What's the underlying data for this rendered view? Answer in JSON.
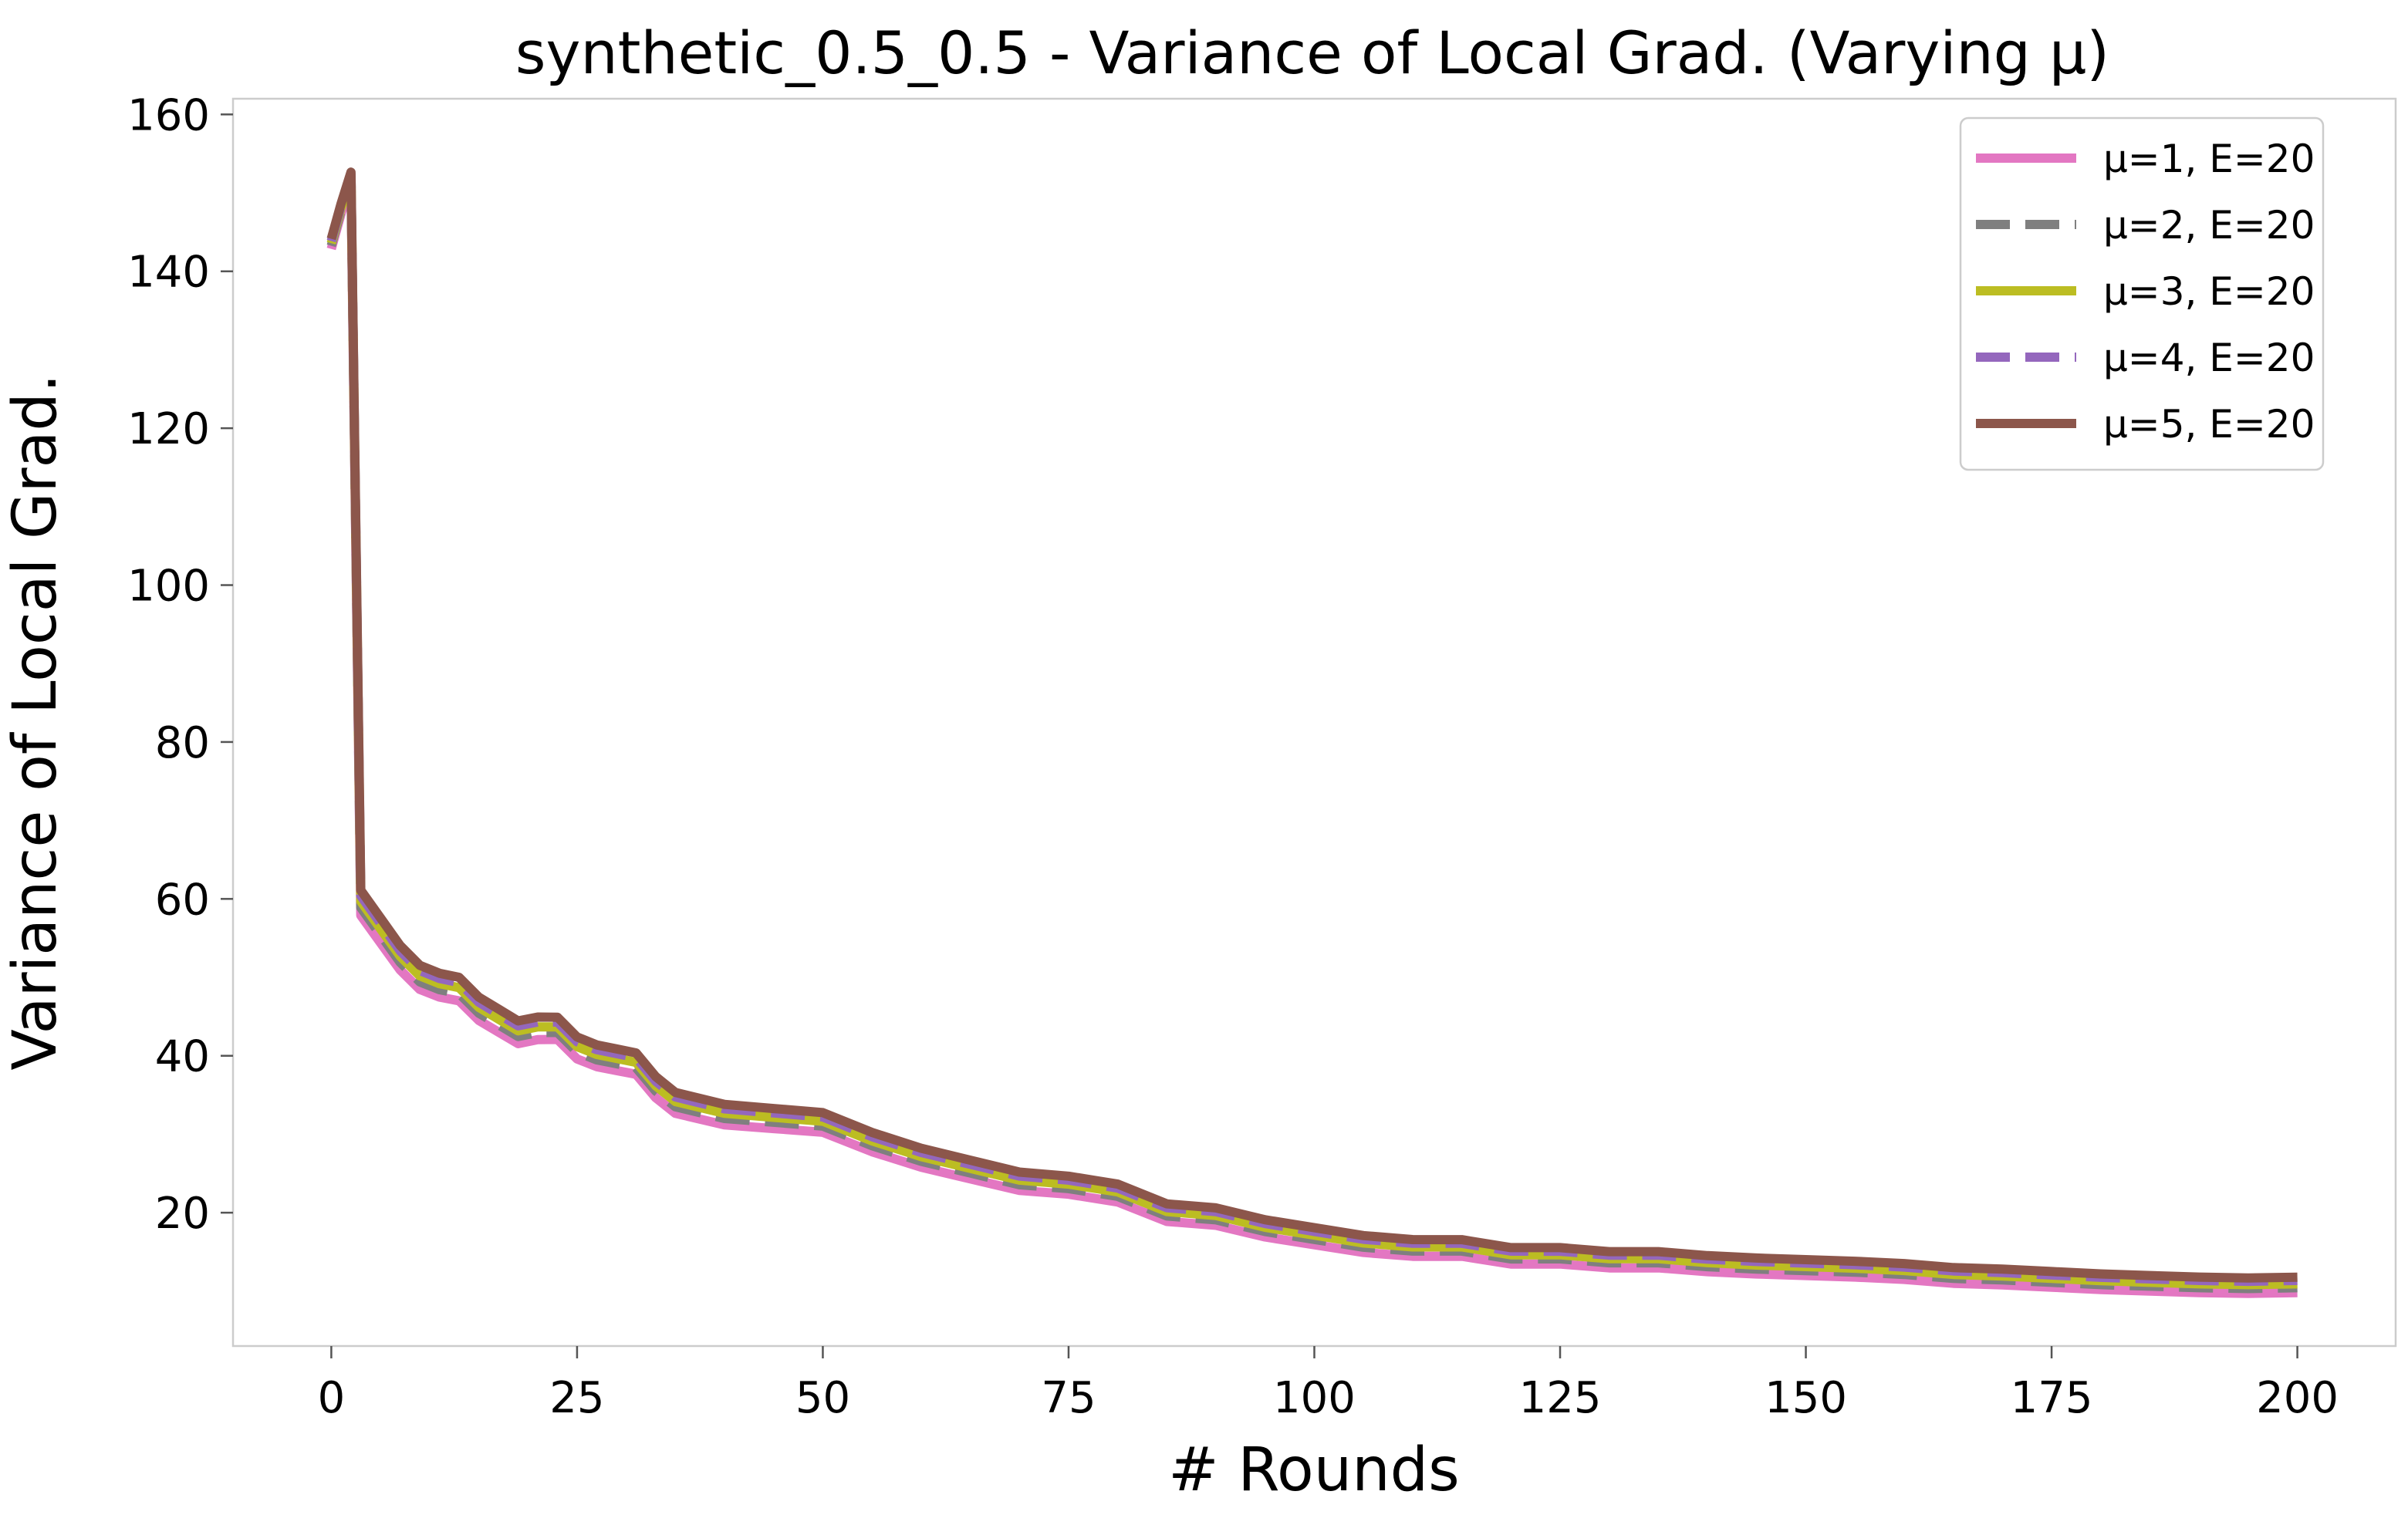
{
  "chart_data": {
    "type": "line",
    "title": "synthetic_0.5_0.5 - Variance of Local Grad. (Varying μ)",
    "xlabel": "# Rounds",
    "ylabel": "Variance of Local Grad.",
    "xlim": [
      -10,
      210
    ],
    "ylim": [
      3,
      162
    ],
    "xticks": [
      0,
      25,
      50,
      75,
      100,
      125,
      150,
      175,
      200
    ],
    "yticks": [
      20,
      40,
      60,
      80,
      100,
      120,
      140,
      160
    ],
    "grid": false,
    "legend": "top-right",
    "base_curve": {
      "x": [
        0,
        1,
        2,
        3,
        5,
        7,
        9,
        11,
        13,
        15,
        17,
        19,
        21,
        23,
        25,
        27,
        29,
        31,
        33,
        35,
        40,
        45,
        50,
        55,
        60,
        65,
        70,
        75,
        80,
        85,
        90,
        95,
        100,
        105,
        110,
        115,
        120,
        125,
        130,
        135,
        140,
        145,
        150,
        155,
        160,
        165,
        170,
        175,
        180,
        185,
        190,
        195,
        200
      ],
      "y": [
        143.5,
        148,
        152,
        59.5,
        56,
        52.5,
        50,
        49,
        48.5,
        46,
        44.5,
        43,
        43.5,
        43.5,
        41,
        40,
        39.5,
        39,
        36,
        34,
        32.5,
        32,
        31.5,
        29,
        27,
        25.5,
        24,
        23.5,
        22.5,
        20,
        19.5,
        18,
        17,
        16,
        15.5,
        15.5,
        14.5,
        14.5,
        14,
        14,
        13.5,
        13.2,
        13,
        12.8,
        12.5,
        12,
        11.8,
        11.5,
        11.2,
        11,
        10.8,
        10.7,
        10.8
      ]
    },
    "series": [
      {
        "name": "μ=1, E=20",
        "color": "#e377c2",
        "dash": "solid",
        "spread": -1.6
      },
      {
        "name": "μ=2, E=20",
        "color": "#7f7f7f",
        "dash": "dashed",
        "spread": -0.6
      },
      {
        "name": "μ=3, E=20",
        "color": "#bcbd22",
        "dash": "solid",
        "spread": 0.2
      },
      {
        "name": "μ=4, E=20",
        "color": "#9467bd",
        "dash": "dashed",
        "spread": 0.9
      },
      {
        "name": "μ=5, E=20",
        "color": "#8c564b",
        "dash": "solid",
        "spread": 1.6
      }
    ]
  }
}
